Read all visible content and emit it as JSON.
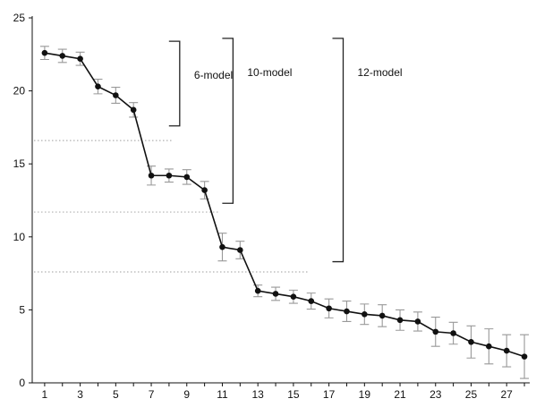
{
  "chart_data": {
    "type": "line",
    "title": "",
    "xlabel": "",
    "ylabel": "",
    "xlim": [
      0.3,
      28.3
    ],
    "ylim": [
      0,
      25
    ],
    "x_ticks": [
      1,
      3,
      5,
      7,
      9,
      11,
      13,
      15,
      17,
      19,
      21,
      23,
      25,
      27
    ],
    "y_ticks": [
      0,
      5,
      10,
      15,
      20,
      25
    ],
    "grid": false,
    "legend": "none",
    "series": [
      {
        "x": [
          1,
          2,
          3,
          4,
          5,
          6,
          7,
          8,
          9,
          10,
          11,
          12,
          13,
          14,
          15,
          16,
          17,
          18,
          19,
          20,
          21,
          22,
          23,
          24,
          25,
          26,
          27,
          28
        ],
        "values": [
          22.6,
          22.4,
          22.2,
          20.3,
          19.7,
          18.7,
          14.2,
          14.2,
          14.1,
          13.2,
          9.3,
          9.1,
          6.3,
          6.1,
          5.9,
          5.6,
          5.1,
          4.9,
          4.7,
          4.6,
          4.3,
          4.2,
          3.5,
          3.4,
          2.8,
          2.5,
          2.2,
          1.8
        ],
        "errors": [
          0.45,
          0.45,
          0.45,
          0.5,
          0.55,
          0.5,
          0.65,
          0.45,
          0.5,
          0.6,
          0.95,
          0.6,
          0.4,
          0.45,
          0.45,
          0.55,
          0.65,
          0.7,
          0.7,
          0.75,
          0.7,
          0.65,
          1.0,
          0.75,
          1.1,
          1.2,
          1.1,
          1.5
        ]
      }
    ],
    "reference_lines": [
      {
        "y": 16.6,
        "x_end": 8.2
      },
      {
        "y": 11.7,
        "x_end": 10.8
      },
      {
        "y": 7.6,
        "x_end": 15.8
      }
    ],
    "brackets": [
      {
        "label": "6-model",
        "x": 8.6,
        "y_top": 23.4,
        "y_bottom": 17.6
      },
      {
        "label": "10-model",
        "x": 11.6,
        "y_top": 23.6,
        "y_bottom": 12.3
      },
      {
        "label": "12-model",
        "x": 17.8,
        "y_top": 23.6,
        "y_bottom": 8.3
      }
    ],
    "colors": {
      "line": "#111111",
      "marker": "#111111",
      "error_bar": "#999999",
      "reference_line": "#b0b0b0",
      "bracket": "#222222"
    }
  }
}
